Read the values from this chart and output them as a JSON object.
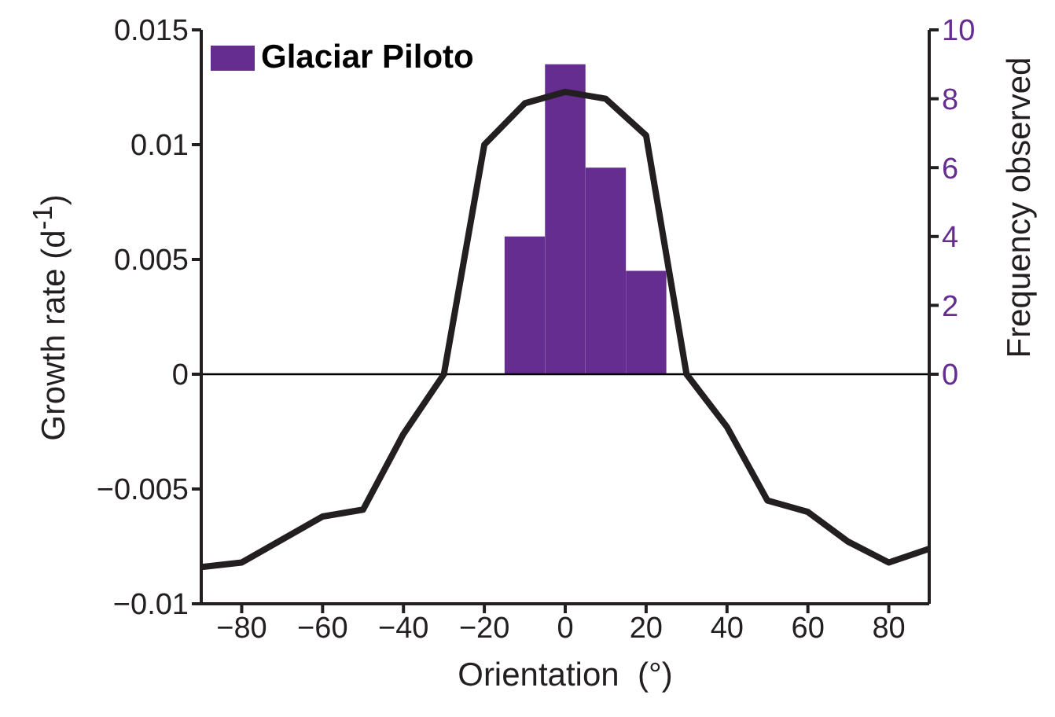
{
  "chart_data": {
    "type": "line",
    "xlabel": "Orientation  (°)",
    "ylabel": "Growth rate (d$^{-1}$)",
    "y2label": "Frequency observed",
    "xlim": [
      -90,
      90
    ],
    "xticks": [
      -80,
      -60,
      -40,
      -20,
      0,
      20,
      40,
      60,
      80
    ],
    "ylim": [
      -0.01,
      0.015
    ],
    "yticks": [
      -0.01,
      -0.005,
      0,
      0.005,
      0.01,
      0.015
    ],
    "y2lim": [
      -6.667,
      10
    ],
    "y2ticks": [
      0,
      2,
      4,
      6,
      8,
      10
    ],
    "series": [
      {
        "color": "#231f20",
        "x": [
          -90,
          -80,
          -70,
          -60,
          -50,
          -40,
          -30,
          -20,
          -10,
          0,
          10,
          20,
          30,
          40,
          50,
          60,
          70,
          80,
          90
        ],
        "values": [
          -0.0084,
          -0.0082,
          -0.0072,
          -0.0062,
          -0.0059,
          -0.0026,
          0,
          0.01,
          0.0118,
          0.0123,
          0.012,
          0.0104,
          0,
          -0.0023,
          -0.0055,
          -0.006,
          -0.0073,
          -0.0082,
          -0.0076
        ]
      },
      {
        "type": "histogram",
        "name": "Glaciar Piloto",
        "color": "#662d91",
        "axis": "y2",
        "bins": [
          -15,
          -5,
          5,
          15,
          25
        ],
        "values": [
          4,
          9,
          6,
          3
        ]
      }
    ],
    "ref_lines": [
      {
        "axis": "y",
        "value": 0,
        "color": "#000000"
      }
    ],
    "legend": "top left",
    "line_style": "solid"
  }
}
